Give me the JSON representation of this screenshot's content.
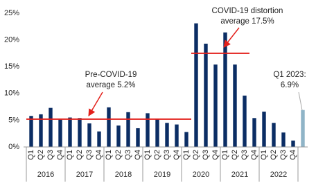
{
  "chart_data": {
    "type": "bar",
    "categories": [
      "Q1",
      "Q2",
      "Q3",
      "Q4",
      "Q1",
      "Q2",
      "Q3",
      "Q4",
      "Q1",
      "Q2",
      "Q3",
      "Q4",
      "Q1",
      "Q2",
      "Q3",
      "Q4",
      "Q1",
      "Q2",
      "Q3",
      "Q4",
      "Q1",
      "Q2",
      "Q3",
      "Q4",
      "Q1",
      "Q2",
      "Q3",
      "Q4",
      null
    ],
    "groups": [
      "2016",
      "2017",
      "2018",
      "2019",
      "2020",
      "2021",
      "2022"
    ],
    "values": [
      5.8,
      6.1,
      7.3,
      5.1,
      5.5,
      5.4,
      4.4,
      2.9,
      7.4,
      4.0,
      6.5,
      3.5,
      6.3,
      5.2,
      4.5,
      4.2,
      2.8,
      23.1,
      19.3,
      15.4,
      21.4,
      15.4,
      9.6,
      5.4,
      6.6,
      4.5,
      2.7,
      1.2,
      6.9
    ],
    "color": "#0b2d64",
    "highlight_color": "#8fb4c7",
    "ylim": [
      0,
      25
    ],
    "yticks": [
      {
        "value": 0,
        "label": "0%"
      },
      {
        "value": 5,
        "label": "5%"
      },
      {
        "value": 10,
        "label": "10%"
      },
      {
        "value": 15,
        "label": "15%"
      },
      {
        "value": 20,
        "label": "20%"
      },
      {
        "value": 25,
        "label": "25%"
      }
    ],
    "reference_lines": [
      {
        "value": 5.2,
        "color": "#e3201b",
        "label": [
          "Pre-COVID-19",
          "average 5.2%"
        ]
      },
      {
        "value": 17.5,
        "color": "#e3201b",
        "label": [
          "COVID-19 distortion",
          "average 17.5%"
        ]
      }
    ],
    "annotation": [
      "Q1 2023:",
      "6.9%"
    ]
  }
}
